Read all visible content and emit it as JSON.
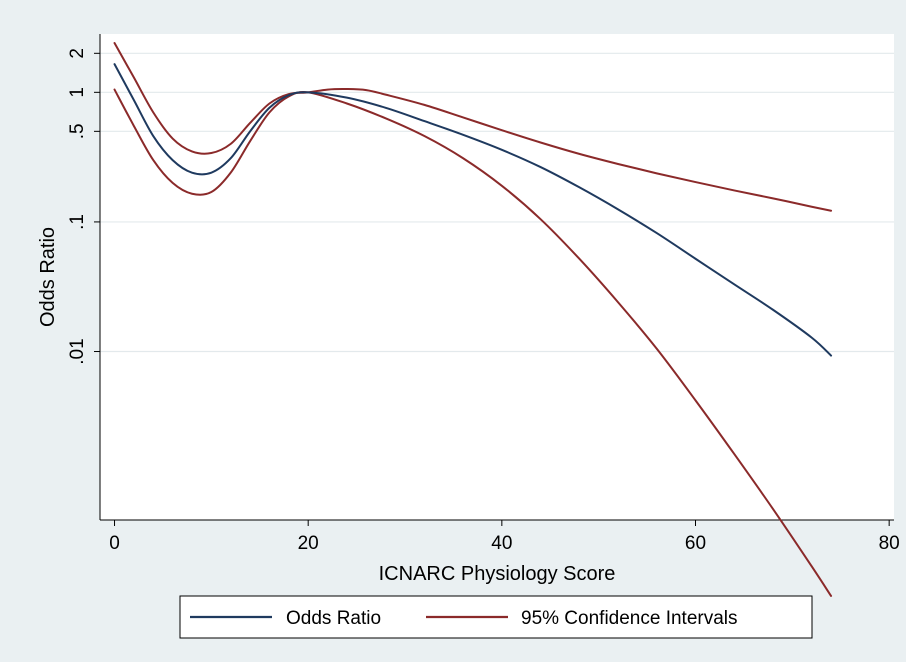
{
  "chart_data": {
    "type": "line",
    "xlabel": "ICNARC Physiology Score",
    "ylabel": "Odds Ratio",
    "xlim": [
      -1.5,
      80.5
    ],
    "y_scale": "log",
    "ylim_log10": [
      -3.3,
      0.45
    ],
    "x_ticks": [
      0,
      20,
      40,
      60,
      80
    ],
    "x_tick_labels": [
      "0",
      "20",
      "40",
      "60",
      "80"
    ],
    "y_ticks": [
      2,
      1,
      0.5,
      0.1,
      0.01
    ],
    "y_tick_labels": [
      "2",
      "1",
      ".5",
      ".1",
      ".01"
    ],
    "grid": "horizontal",
    "legend_position": "bottom",
    "legend": [
      {
        "label": "Odds Ratio",
        "color": "#1f3a5f"
      },
      {
        "label": "95% Confidence Intervals",
        "color": "#8b2a2a"
      }
    ],
    "series": [
      {
        "name": "Odds Ratio",
        "color": "#1f3a5f",
        "x": [
          0,
          2,
          4,
          6,
          8,
          10,
          12,
          14,
          16,
          18,
          20,
          24,
          28,
          32,
          36,
          40,
          44,
          48,
          52,
          56,
          60,
          64,
          68,
          72,
          74
        ],
        "y": [
          1.65,
          0.87,
          0.46,
          0.3,
          0.24,
          0.24,
          0.31,
          0.5,
          0.76,
          0.95,
          1.0,
          0.91,
          0.76,
          0.6,
          0.47,
          0.36,
          0.265,
          0.185,
          0.125,
          0.082,
          0.052,
          0.033,
          0.021,
          0.0128,
          0.0093
        ]
      },
      {
        "name": "95% Confidence Intervals",
        "color": "#8b2a2a",
        "x": [
          0,
          2,
          4,
          6,
          8,
          10,
          12,
          14,
          16,
          18,
          20,
          22,
          24,
          26,
          28,
          32,
          36,
          40,
          44,
          48,
          52,
          56,
          60,
          64,
          68,
          72,
          74
        ],
        "y": [
          2.4,
          1.3,
          0.7,
          0.44,
          0.35,
          0.34,
          0.4,
          0.58,
          0.82,
          0.97,
          1.0,
          1.05,
          1.06,
          1.04,
          0.96,
          0.8,
          0.64,
          0.51,
          0.41,
          0.335,
          0.28,
          0.237,
          0.203,
          0.175,
          0.152,
          0.131,
          0.122
        ]
      },
      {
        "name": "95% Confidence Intervals",
        "color": "#8b2a2a",
        "x": [
          0,
          2,
          4,
          6,
          8,
          10,
          12,
          14,
          16,
          18,
          20,
          24,
          28,
          32,
          36,
          40,
          44,
          48,
          52,
          56,
          60,
          64,
          68,
          72,
          74
        ],
        "y": [
          1.05,
          0.55,
          0.3,
          0.2,
          0.165,
          0.17,
          0.24,
          0.42,
          0.7,
          0.93,
          1.0,
          0.82,
          0.63,
          0.46,
          0.31,
          0.19,
          0.105,
          0.052,
          0.024,
          0.0105,
          0.0042,
          0.00162,
          0.00061,
          0.00022,
          0.00013
        ]
      }
    ]
  }
}
